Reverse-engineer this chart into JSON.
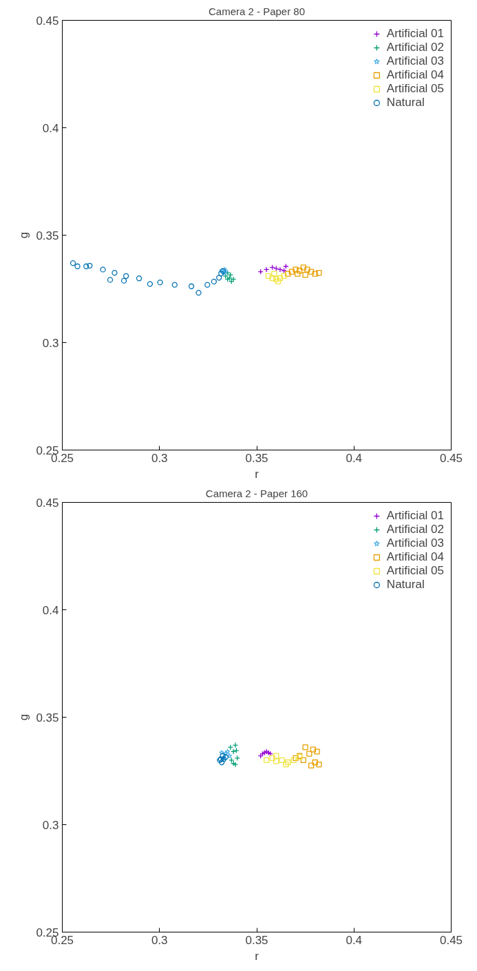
{
  "chart_data": [
    {
      "type": "scatter",
      "title": "Camera 2 - Paper 80",
      "xlabel": "r",
      "ylabel": "g",
      "xlim": [
        0.25,
        0.45
      ],
      "ylim": [
        0.25,
        0.45
      ],
      "xticks": [
        0.25,
        0.3,
        0.35,
        0.4,
        0.45
      ],
      "yticks": [
        0.25,
        0.3,
        0.35,
        0.4,
        0.45
      ],
      "grid": false,
      "legend": "top right",
      "series": [
        {
          "name": "Artificial 01",
          "color": "#9400d3",
          "marker": "cross",
          "x": [
            0.352,
            0.355,
            0.358,
            0.36,
            0.362,
            0.364,
            0.365
          ],
          "values": [
            0.333,
            0.334,
            0.335,
            0.3345,
            0.334,
            0.3335,
            0.3355
          ]
        },
        {
          "name": "Artificial 02",
          "color": "#009e73",
          "marker": "cross",
          "x": [
            0.334,
            0.335,
            0.336,
            0.337,
            0.338,
            0.3365,
            0.335
          ],
          "values": [
            0.331,
            0.3295,
            0.33,
            0.3285,
            0.3295,
            0.3315,
            0.3325
          ]
        },
        {
          "name": "Artificial 03",
          "color": "#56b4e9",
          "marker": "star",
          "x": [
            0.332,
            0.333,
            0.334,
            0.3335
          ],
          "values": [
            0.3335,
            0.3325,
            0.333,
            0.334
          ]
        },
        {
          "name": "Artificial 04",
          "color": "#e69f00",
          "marker": "square",
          "x": [
            0.366,
            0.368,
            0.37,
            0.372,
            0.374,
            0.376,
            0.378,
            0.38,
            0.382,
            0.375,
            0.371
          ],
          "values": [
            0.332,
            0.333,
            0.334,
            0.3335,
            0.335,
            0.334,
            0.333,
            0.332,
            0.3325,
            0.3315,
            0.332
          ]
        },
        {
          "name": "Artificial 05",
          "color": "#f0e442",
          "marker": "square",
          "x": [
            0.356,
            0.358,
            0.36,
            0.362,
            0.364,
            0.359,
            0.361
          ],
          "values": [
            0.331,
            0.33,
            0.3295,
            0.33,
            0.331,
            0.332,
            0.3285
          ]
        },
        {
          "name": "Natural",
          "color": "#0072b2",
          "marker": "circle",
          "x": [
            0.2555,
            0.2578,
            0.2623,
            0.2641,
            0.2709,
            0.2746,
            0.2769,
            0.2817,
            0.2828,
            0.2895,
            0.2951,
            0.3003,
            0.3078,
            0.3164,
            0.3201,
            0.3246,
            0.328,
            0.3306,
            0.3317,
            0.3326
          ],
          "values": [
            0.337,
            0.3355,
            0.3355,
            0.3358,
            0.334,
            0.3292,
            0.3325,
            0.3288,
            0.331,
            0.3299,
            0.3273,
            0.328,
            0.3269,
            0.3262,
            0.3232,
            0.3269,
            0.3284,
            0.3302,
            0.3322,
            0.3333
          ]
        }
      ]
    },
    {
      "type": "scatter",
      "title": "Camera 2 - Paper 160",
      "xlabel": "r",
      "ylabel": "g",
      "xlim": [
        0.25,
        0.45
      ],
      "ylim": [
        0.25,
        0.45
      ],
      "xticks": [
        0.25,
        0.3,
        0.35,
        0.4,
        0.45
      ],
      "yticks": [
        0.25,
        0.3,
        0.35,
        0.4,
        0.45
      ],
      "grid": false,
      "legend": "top right",
      "series": [
        {
          "name": "Artificial 01",
          "color": "#9400d3",
          "marker": "cross",
          "x": [
            0.352,
            0.353,
            0.354,
            0.355,
            0.356,
            0.357
          ],
          "values": [
            0.332,
            0.333,
            0.3335,
            0.334,
            0.3335,
            0.333
          ]
        },
        {
          "name": "Artificial 02",
          "color": "#009e73",
          "marker": "cross",
          "x": [
            0.3365,
            0.3395,
            0.338,
            0.339,
            0.34,
            0.339,
            0.338,
            0.337
          ],
          "values": [
            0.336,
            0.3345,
            0.3285,
            0.337,
            0.331,
            0.328,
            0.334,
            0.33
          ]
        },
        {
          "name": "Artificial 03",
          "color": "#56b4e9",
          "marker": "star",
          "x": [
            0.332,
            0.334,
            0.336,
            0.335,
            0.333
          ],
          "values": [
            0.3335,
            0.333,
            0.332,
            0.334,
            0.331
          ]
        },
        {
          "name": "Artificial 04",
          "color": "#e69f00",
          "marker": "square",
          "x": [
            0.37,
            0.372,
            0.375,
            0.377,
            0.379,
            0.38,
            0.381,
            0.382,
            0.378,
            0.374
          ],
          "values": [
            0.331,
            0.332,
            0.336,
            0.333,
            0.335,
            0.329,
            0.334,
            0.328,
            0.3275,
            0.33
          ]
        },
        {
          "name": "Artificial 05",
          "color": "#f0e442",
          "marker": "square",
          "x": [
            0.355,
            0.358,
            0.36,
            0.363,
            0.366,
            0.369,
            0.372,
            0.36,
            0.365
          ],
          "values": [
            0.33,
            0.331,
            0.3295,
            0.33,
            0.329,
            0.33,
            0.3315,
            0.332,
            0.328
          ]
        },
        {
          "name": "Natural",
          "color": "#0072b2",
          "marker": "circle",
          "x": [
            0.331,
            0.332,
            0.333,
            0.334,
            0.3325,
            0.3315
          ],
          "values": [
            0.33,
            0.329,
            0.3305,
            0.3315,
            0.332,
            0.3305
          ]
        }
      ]
    }
  ]
}
